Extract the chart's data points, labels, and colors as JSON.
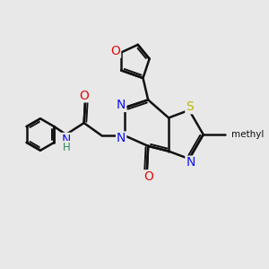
{
  "bg": "#e8e8e8",
  "black": "#111111",
  "blue": "#1010ee",
  "red": "#dd1111",
  "yellow": "#b8b800",
  "teal": "#2e8b57",
  "bw": 1.8,
  "fs": 9.0,
  "figsize": [
    3.0,
    3.0
  ],
  "dpi": 100,
  "xlim": [
    0,
    10
  ],
  "ylim": [
    0,
    10
  ]
}
